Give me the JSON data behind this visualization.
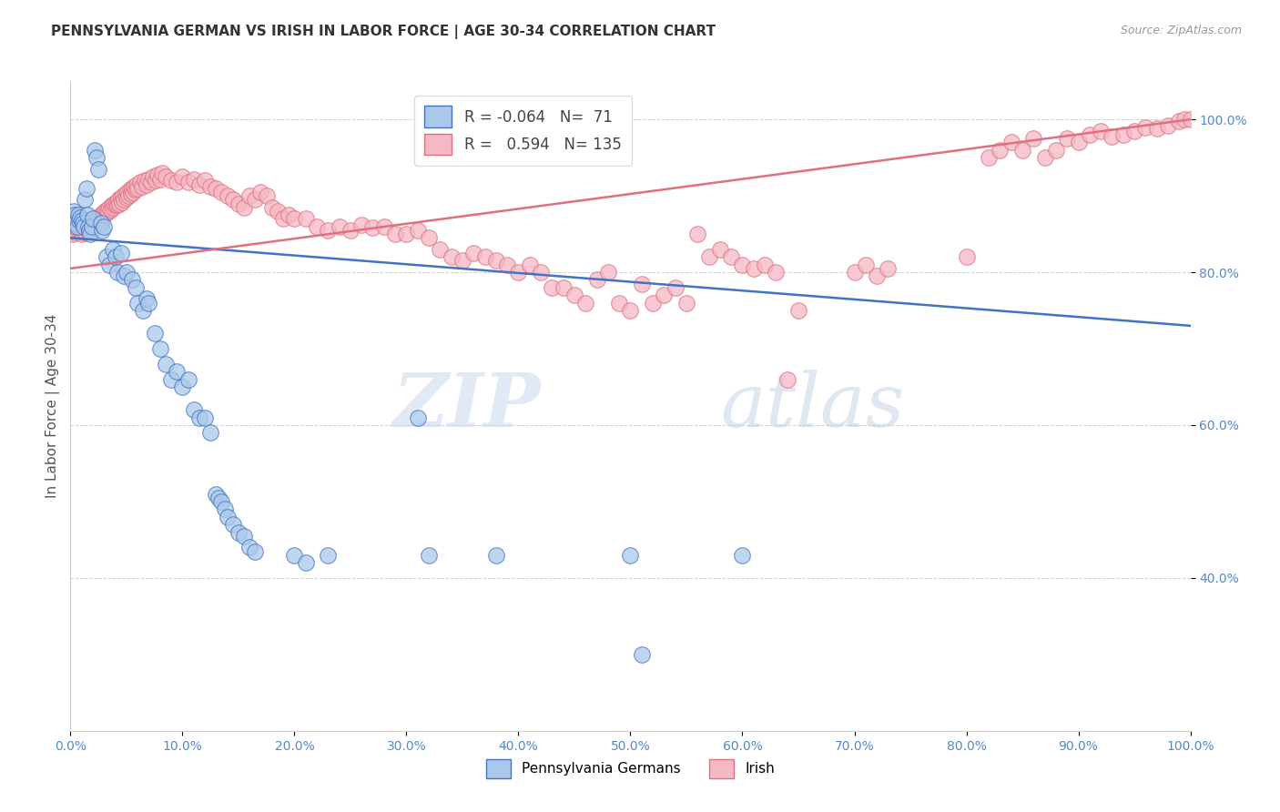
{
  "title": "PENNSYLVANIA GERMAN VS IRISH IN LABOR FORCE | AGE 30-34 CORRELATION CHART",
  "source": "Source: ZipAtlas.com",
  "ylabel": "In Labor Force | Age 30-34",
  "xmin": 0.0,
  "xmax": 1.0,
  "ymin": 0.2,
  "ymax": 1.05,
  "blue_R": "-0.064",
  "blue_N": "71",
  "pink_R": "0.594",
  "pink_N": "135",
  "blue_color": "#aac9ea",
  "pink_color": "#f5b8c4",
  "blue_line_color": "#4472c4",
  "pink_line_color": "#e07080",
  "blue_slope": -0.115,
  "blue_intercept": 0.845,
  "pink_slope": 0.195,
  "pink_intercept": 0.805,
  "blue_points": [
    [
      0.001,
      0.87
    ],
    [
      0.002,
      0.87
    ],
    [
      0.003,
      0.88
    ],
    [
      0.004,
      0.875
    ],
    [
      0.005,
      0.865
    ],
    [
      0.006,
      0.86
    ],
    [
      0.007,
      0.875
    ],
    [
      0.008,
      0.868
    ],
    [
      0.009,
      0.872
    ],
    [
      0.01,
      0.868
    ],
    [
      0.011,
      0.865
    ],
    [
      0.012,
      0.86
    ],
    [
      0.013,
      0.895
    ],
    [
      0.014,
      0.91
    ],
    [
      0.015,
      0.875
    ],
    [
      0.016,
      0.86
    ],
    [
      0.017,
      0.855
    ],
    [
      0.018,
      0.85
    ],
    [
      0.019,
      0.86
    ],
    [
      0.02,
      0.87
    ],
    [
      0.022,
      0.96
    ],
    [
      0.023,
      0.95
    ],
    [
      0.025,
      0.935
    ],
    [
      0.027,
      0.865
    ],
    [
      0.028,
      0.855
    ],
    [
      0.03,
      0.86
    ],
    [
      0.032,
      0.82
    ],
    [
      0.035,
      0.81
    ],
    [
      0.038,
      0.83
    ],
    [
      0.04,
      0.82
    ],
    [
      0.042,
      0.8
    ],
    [
      0.045,
      0.825
    ],
    [
      0.048,
      0.795
    ],
    [
      0.05,
      0.8
    ],
    [
      0.055,
      0.79
    ],
    [
      0.058,
      0.78
    ],
    [
      0.06,
      0.76
    ],
    [
      0.065,
      0.75
    ],
    [
      0.068,
      0.765
    ],
    [
      0.07,
      0.76
    ],
    [
      0.075,
      0.72
    ],
    [
      0.08,
      0.7
    ],
    [
      0.085,
      0.68
    ],
    [
      0.09,
      0.66
    ],
    [
      0.095,
      0.67
    ],
    [
      0.1,
      0.65
    ],
    [
      0.105,
      0.66
    ],
    [
      0.11,
      0.62
    ],
    [
      0.115,
      0.61
    ],
    [
      0.12,
      0.61
    ],
    [
      0.125,
      0.59
    ],
    [
      0.13,
      0.51
    ],
    [
      0.132,
      0.505
    ],
    [
      0.135,
      0.5
    ],
    [
      0.138,
      0.49
    ],
    [
      0.14,
      0.48
    ],
    [
      0.145,
      0.47
    ],
    [
      0.15,
      0.46
    ],
    [
      0.155,
      0.455
    ],
    [
      0.16,
      0.44
    ],
    [
      0.165,
      0.435
    ],
    [
      0.2,
      0.43
    ],
    [
      0.21,
      0.42
    ],
    [
      0.23,
      0.43
    ],
    [
      0.31,
      0.61
    ],
    [
      0.32,
      0.43
    ],
    [
      0.38,
      0.43
    ],
    [
      0.5,
      0.43
    ],
    [
      0.51,
      0.3
    ],
    [
      0.6,
      0.43
    ]
  ],
  "pink_points": [
    [
      0.001,
      0.855
    ],
    [
      0.002,
      0.85
    ],
    [
      0.003,
      0.855
    ],
    [
      0.004,
      0.852
    ],
    [
      0.005,
      0.858
    ],
    [
      0.006,
      0.86
    ],
    [
      0.007,
      0.855
    ],
    [
      0.008,
      0.858
    ],
    [
      0.009,
      0.855
    ],
    [
      0.01,
      0.85
    ],
    [
      0.011,
      0.852
    ],
    [
      0.012,
      0.855
    ],
    [
      0.013,
      0.858
    ],
    [
      0.014,
      0.86
    ],
    [
      0.015,
      0.862
    ],
    [
      0.016,
      0.858
    ],
    [
      0.017,
      0.865
    ],
    [
      0.018,
      0.862
    ],
    [
      0.019,
      0.868
    ],
    [
      0.02,
      0.86
    ],
    [
      0.021,
      0.862
    ],
    [
      0.022,
      0.865
    ],
    [
      0.023,
      0.87
    ],
    [
      0.024,
      0.868
    ],
    [
      0.025,
      0.872
    ],
    [
      0.026,
      0.87
    ],
    [
      0.027,
      0.875
    ],
    [
      0.028,
      0.872
    ],
    [
      0.029,
      0.878
    ],
    [
      0.03,
      0.875
    ],
    [
      0.031,
      0.88
    ],
    [
      0.032,
      0.878
    ],
    [
      0.033,
      0.882
    ],
    [
      0.034,
      0.88
    ],
    [
      0.035,
      0.885
    ],
    [
      0.036,
      0.882
    ],
    [
      0.037,
      0.888
    ],
    [
      0.038,
      0.885
    ],
    [
      0.039,
      0.89
    ],
    [
      0.04,
      0.888
    ],
    [
      0.041,
      0.892
    ],
    [
      0.042,
      0.888
    ],
    [
      0.043,
      0.895
    ],
    [
      0.044,
      0.89
    ],
    [
      0.045,
      0.898
    ],
    [
      0.046,
      0.892
    ],
    [
      0.047,
      0.9
    ],
    [
      0.048,
      0.895
    ],
    [
      0.049,
      0.902
    ],
    [
      0.05,
      0.898
    ],
    [
      0.051,
      0.905
    ],
    [
      0.052,
      0.9
    ],
    [
      0.053,
      0.908
    ],
    [
      0.054,
      0.902
    ],
    [
      0.055,
      0.91
    ],
    [
      0.056,
      0.905
    ],
    [
      0.057,
      0.912
    ],
    [
      0.058,
      0.908
    ],
    [
      0.059,
      0.915
    ],
    [
      0.06,
      0.91
    ],
    [
      0.062,
      0.918
    ],
    [
      0.064,
      0.912
    ],
    [
      0.066,
      0.92
    ],
    [
      0.068,
      0.915
    ],
    [
      0.07,
      0.922
    ],
    [
      0.072,
      0.918
    ],
    [
      0.074,
      0.925
    ],
    [
      0.076,
      0.92
    ],
    [
      0.078,
      0.928
    ],
    [
      0.08,
      0.922
    ],
    [
      0.082,
      0.93
    ],
    [
      0.085,
      0.925
    ],
    [
      0.09,
      0.92
    ],
    [
      0.095,
      0.918
    ],
    [
      0.1,
      0.925
    ],
    [
      0.105,
      0.918
    ],
    [
      0.11,
      0.922
    ],
    [
      0.115,
      0.915
    ],
    [
      0.12,
      0.92
    ],
    [
      0.125,
      0.912
    ],
    [
      0.13,
      0.91
    ],
    [
      0.135,
      0.905
    ],
    [
      0.14,
      0.9
    ],
    [
      0.145,
      0.895
    ],
    [
      0.15,
      0.89
    ],
    [
      0.155,
      0.885
    ],
    [
      0.16,
      0.9
    ],
    [
      0.165,
      0.895
    ],
    [
      0.17,
      0.905
    ],
    [
      0.175,
      0.9
    ],
    [
      0.18,
      0.885
    ],
    [
      0.185,
      0.88
    ],
    [
      0.19,
      0.87
    ],
    [
      0.195,
      0.875
    ],
    [
      0.2,
      0.87
    ],
    [
      0.21,
      0.87
    ],
    [
      0.22,
      0.86
    ],
    [
      0.23,
      0.855
    ],
    [
      0.24,
      0.86
    ],
    [
      0.25,
      0.855
    ],
    [
      0.26,
      0.862
    ],
    [
      0.27,
      0.858
    ],
    [
      0.28,
      0.86
    ],
    [
      0.29,
      0.85
    ],
    [
      0.3,
      0.85
    ],
    [
      0.31,
      0.855
    ],
    [
      0.32,
      0.845
    ],
    [
      0.33,
      0.83
    ],
    [
      0.34,
      0.82
    ],
    [
      0.35,
      0.815
    ],
    [
      0.36,
      0.825
    ],
    [
      0.37,
      0.82
    ],
    [
      0.38,
      0.815
    ],
    [
      0.39,
      0.81
    ],
    [
      0.4,
      0.8
    ],
    [
      0.41,
      0.81
    ],
    [
      0.42,
      0.8
    ],
    [
      0.43,
      0.78
    ],
    [
      0.44,
      0.78
    ],
    [
      0.45,
      0.77
    ],
    [
      0.46,
      0.76
    ],
    [
      0.47,
      0.79
    ],
    [
      0.48,
      0.8
    ],
    [
      0.49,
      0.76
    ],
    [
      0.5,
      0.75
    ],
    [
      0.51,
      0.785
    ],
    [
      0.52,
      0.76
    ],
    [
      0.53,
      0.77
    ],
    [
      0.54,
      0.78
    ],
    [
      0.55,
      0.76
    ],
    [
      0.56,
      0.85
    ],
    [
      0.57,
      0.82
    ],
    [
      0.58,
      0.83
    ],
    [
      0.59,
      0.82
    ],
    [
      0.6,
      0.81
    ],
    [
      0.61,
      0.805
    ],
    [
      0.62,
      0.81
    ],
    [
      0.63,
      0.8
    ],
    [
      0.64,
      0.66
    ],
    [
      0.65,
      0.75
    ],
    [
      0.7,
      0.8
    ],
    [
      0.71,
      0.81
    ],
    [
      0.72,
      0.795
    ],
    [
      0.73,
      0.805
    ],
    [
      0.8,
      0.82
    ],
    [
      0.82,
      0.95
    ],
    [
      0.83,
      0.96
    ],
    [
      0.84,
      0.97
    ],
    [
      0.85,
      0.96
    ],
    [
      0.86,
      0.975
    ],
    [
      0.87,
      0.95
    ],
    [
      0.88,
      0.96
    ],
    [
      0.89,
      0.975
    ],
    [
      0.9,
      0.97
    ],
    [
      0.91,
      0.98
    ],
    [
      0.92,
      0.985
    ],
    [
      0.93,
      0.978
    ],
    [
      0.94,
      0.98
    ],
    [
      0.95,
      0.985
    ],
    [
      0.96,
      0.99
    ],
    [
      0.97,
      0.988
    ],
    [
      0.98,
      0.992
    ],
    [
      0.99,
      0.998
    ],
    [
      0.995,
      1.0
    ],
    [
      1.0,
      1.0
    ]
  ],
  "watermark_zip": "ZIP",
  "watermark_atlas": "atlas",
  "grid_color": "#cccccc",
  "background_color": "#ffffff",
  "tick_color": "#5588cc"
}
